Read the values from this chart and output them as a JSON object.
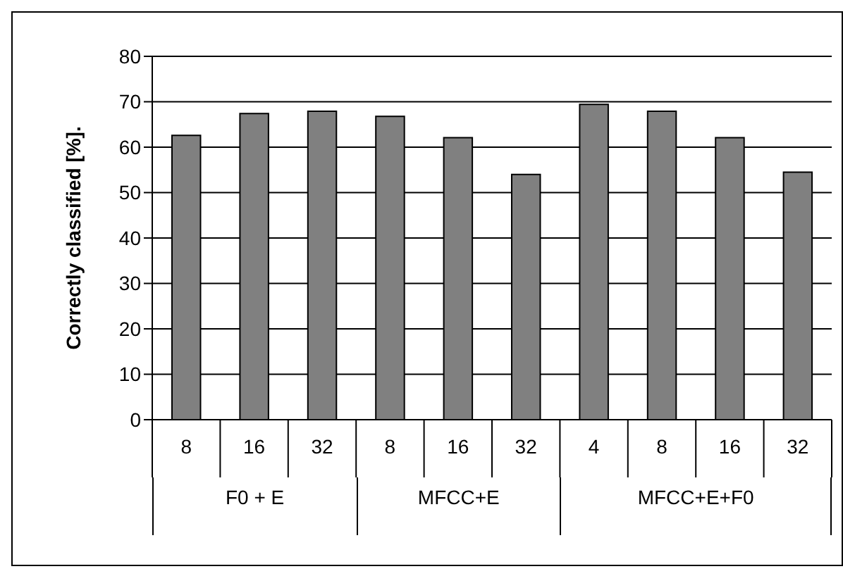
{
  "chart_data": {
    "type": "bar",
    "ylabel": "Correctly classified [%].",
    "categories": [
      "8",
      "16",
      "32",
      "8",
      "16",
      "32",
      "4",
      "8",
      "16",
      "32"
    ],
    "values": [
      62.6,
      67.4,
      67.9,
      66.8,
      62.1,
      54.0,
      69.4,
      67.9,
      62.1,
      54.5
    ],
    "color": "#808080",
    "ylim": [
      0,
      80
    ],
    "yticks": [
      0,
      10,
      20,
      30,
      40,
      50,
      60,
      70,
      80
    ],
    "grid": "y",
    "annotations": [
      "F0 + E",
      "MFCC+E",
      "MFCC+E+F0"
    ]
  }
}
